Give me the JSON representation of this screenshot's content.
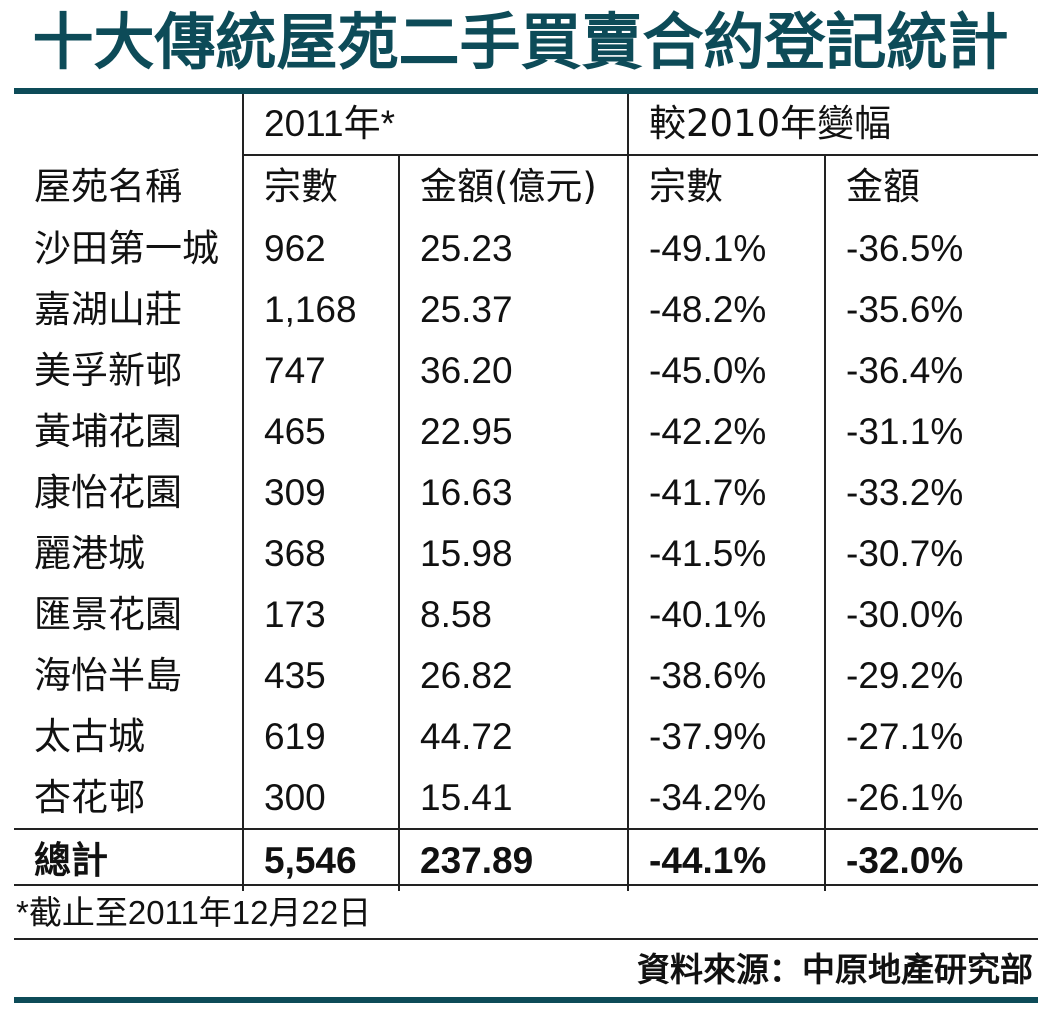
{
  "title": "十大傳統屋苑二手買賣合約登記統計",
  "header": {
    "group_2011": "2011年*",
    "group_change": "較2010年變幅",
    "col_estate": "屋苑名稱",
    "col_count": "宗數",
    "col_amount": "金額(億元)",
    "col_count_change": "宗數",
    "col_amount_change": "金額"
  },
  "rows": [
    {
      "name": "沙田第一城",
      "count": "962",
      "amount": "25.23",
      "count_change": "-49.1%",
      "amount_change": "-36.5%"
    },
    {
      "name": "嘉湖山莊",
      "count": "1,168",
      "amount": "25.37",
      "count_change": "-48.2%",
      "amount_change": "-35.6%"
    },
    {
      "name": "美孚新邨",
      "count": "747",
      "amount": "36.20",
      "count_change": "-45.0%",
      "amount_change": "-36.4%"
    },
    {
      "name": "黃埔花園",
      "count": "465",
      "amount": "22.95",
      "count_change": "-42.2%",
      "amount_change": "-31.1%"
    },
    {
      "name": "康怡花園",
      "count": "309",
      "amount": "16.63",
      "count_change": "-41.7%",
      "amount_change": "-33.2%"
    },
    {
      "name": "麗港城",
      "count": "368",
      "amount": "15.98",
      "count_change": "-41.5%",
      "amount_change": "-30.7%"
    },
    {
      "name": "匯景花園",
      "count": "173",
      "amount": "8.58",
      "count_change": "-40.1%",
      "amount_change": "-30.0%"
    },
    {
      "name": "海怡半島",
      "count": "435",
      "amount": "26.82",
      "count_change": "-38.6%",
      "amount_change": "-29.2%"
    },
    {
      "name": "太古城",
      "count": "619",
      "amount": "44.72",
      "count_change": "-37.9%",
      "amount_change": "-27.1%"
    },
    {
      "name": "杏花邨",
      "count": "300",
      "amount": "15.41",
      "count_change": "-34.2%",
      "amount_change": "-26.1%"
    }
  ],
  "total": {
    "name": "總計",
    "count": "5,546",
    "amount": "237.89",
    "count_change": "-44.1%",
    "amount_change": "-32.0%"
  },
  "footnote": "*截止至2011年12月22日",
  "source": "資料來源：中原地產研究部",
  "colors": {
    "accent": "#0d4b58",
    "text": "#111111",
    "rules": "#222222"
  }
}
